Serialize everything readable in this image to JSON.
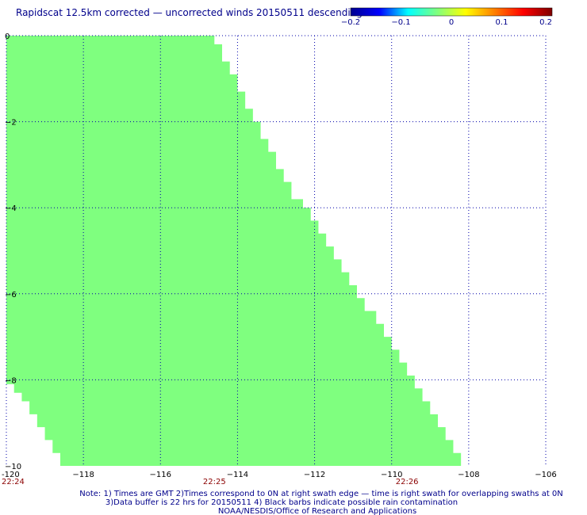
{
  "title": "Rapidscat 12.5km corrected — uncorrected winds 20150511 descending",
  "colorbar": {
    "tick_labels": [
      "−0.2",
      "−0.1",
      "0",
      "0.1",
      "0.2"
    ],
    "range": [
      -0.2,
      0.2
    ],
    "colors": [
      "#00008f",
      "#0000ff",
      "#00ffff",
      "#7fff7f",
      "#ffff00",
      "#ff7f00",
      "#ff0000",
      "#7f0000"
    ]
  },
  "notes": {
    "line1": "Note: 1) Times are GMT 2)Times correspond to 0N at right swath edge — time is right swath for overlapping swaths at 0N",
    "line2": "3)Data buffer is 22 hrs for 20150511 4) Black barbs indicate possible rain contamination",
    "line3": "NOAA/NESDIS/Office of Research and Applications"
  },
  "colors": {
    "swath_fill": "#7fff7f",
    "grid": "#0000aa",
    "time_label": "#8b0000"
  },
  "chart_data": {
    "type": "heatmap",
    "title": "Rapidscat 12.5km corrected — uncorrected winds 20150511 descending",
    "xlabel": "",
    "ylabel": "",
    "xlim": [
      -120,
      -106
    ],
    "ylim": [
      -10,
      0
    ],
    "x_ticks": [
      -120,
      -118,
      -116,
      -114,
      -112,
      -110,
      -108,
      -106
    ],
    "x_tick_labels": [
      "-120",
      "−118",
      "−116",
      "−114",
      "−112",
      "−110",
      "−108",
      "−106"
    ],
    "y_ticks": [
      0,
      -2,
      -4,
      -6,
      -8,
      -10
    ],
    "y_tick_labels": [
      "0",
      "−2",
      "−4",
      "−6",
      "−8",
      "−10"
    ],
    "grid": true,
    "time_labels": [
      {
        "lon": -120,
        "text": "22:24"
      },
      {
        "lon": -114.6,
        "text": "22:25"
      },
      {
        "lon": -109.6,
        "text": "22:26"
      }
    ],
    "swath_value": 0.0,
    "swath_right_edge": [
      {
        "lat": 0.0,
        "lon": -114.6
      },
      {
        "lat": -0.2,
        "lon": -114.6
      },
      {
        "lat": -0.2,
        "lon": -114.4
      },
      {
        "lat": -0.6,
        "lon": -114.4
      },
      {
        "lat": -0.6,
        "lon": -114.2
      },
      {
        "lat": -0.9,
        "lon": -114.2
      },
      {
        "lat": -0.9,
        "lon": -114.0
      },
      {
        "lat": -1.3,
        "lon": -114.0
      },
      {
        "lat": -1.3,
        "lon": -113.8
      },
      {
        "lat": -1.7,
        "lon": -113.8
      },
      {
        "lat": -1.7,
        "lon": -113.6
      },
      {
        "lat": -2.0,
        "lon": -113.6
      },
      {
        "lat": -2.0,
        "lon": -113.4
      },
      {
        "lat": -2.4,
        "lon": -113.4
      },
      {
        "lat": -2.4,
        "lon": -113.2
      },
      {
        "lat": -2.7,
        "lon": -113.2
      },
      {
        "lat": -2.7,
        "lon": -113.0
      },
      {
        "lat": -3.1,
        "lon": -113.0
      },
      {
        "lat": -3.1,
        "lon": -112.8
      },
      {
        "lat": -3.4,
        "lon": -112.8
      },
      {
        "lat": -3.4,
        "lon": -112.6
      },
      {
        "lat": -3.8,
        "lon": -112.6
      },
      {
        "lat": -3.8,
        "lon": -112.3
      },
      {
        "lat": -4.0,
        "lon": -112.3
      },
      {
        "lat": -4.0,
        "lon": -112.1
      },
      {
        "lat": -4.3,
        "lon": -112.1
      },
      {
        "lat": -4.3,
        "lon": -111.9
      },
      {
        "lat": -4.6,
        "lon": -111.9
      },
      {
        "lat": -4.6,
        "lon": -111.7
      },
      {
        "lat": -4.9,
        "lon": -111.7
      },
      {
        "lat": -4.9,
        "lon": -111.5
      },
      {
        "lat": -5.2,
        "lon": -111.5
      },
      {
        "lat": -5.2,
        "lon": -111.3
      },
      {
        "lat": -5.5,
        "lon": -111.3
      },
      {
        "lat": -5.5,
        "lon": -111.1
      },
      {
        "lat": -5.8,
        "lon": -111.1
      },
      {
        "lat": -5.8,
        "lon": -110.9
      },
      {
        "lat": -6.1,
        "lon": -110.9
      },
      {
        "lat": -6.1,
        "lon": -110.7
      },
      {
        "lat": -6.4,
        "lon": -110.7
      },
      {
        "lat": -6.4,
        "lon": -110.4
      },
      {
        "lat": -6.7,
        "lon": -110.4
      },
      {
        "lat": -6.7,
        "lon": -110.2
      },
      {
        "lat": -7.0,
        "lon": -110.2
      },
      {
        "lat": -7.0,
        "lon": -110.0
      },
      {
        "lat": -7.3,
        "lon": -110.0
      },
      {
        "lat": -7.3,
        "lon": -109.8
      },
      {
        "lat": -7.6,
        "lon": -109.8
      },
      {
        "lat": -7.6,
        "lon": -109.6
      },
      {
        "lat": -7.9,
        "lon": -109.6
      },
      {
        "lat": -7.9,
        "lon": -109.4
      },
      {
        "lat": -8.2,
        "lon": -109.4
      },
      {
        "lat": -8.2,
        "lon": -109.2
      },
      {
        "lat": -8.5,
        "lon": -109.2
      },
      {
        "lat": -8.5,
        "lon": -109.0
      },
      {
        "lat": -8.8,
        "lon": -109.0
      },
      {
        "lat": -8.8,
        "lon": -108.8
      },
      {
        "lat": -9.1,
        "lon": -108.8
      },
      {
        "lat": -9.1,
        "lon": -108.6
      },
      {
        "lat": -9.4,
        "lon": -108.6
      },
      {
        "lat": -9.4,
        "lon": -108.4
      },
      {
        "lat": -9.7,
        "lon": -108.4
      },
      {
        "lat": -9.7,
        "lon": -108.2
      },
      {
        "lat": -10.0,
        "lon": -108.2
      }
    ],
    "swath_left_edge": [
      {
        "lat": -10.0,
        "lon": -118.6
      },
      {
        "lat": -9.7,
        "lon": -118.6
      },
      {
        "lat": -9.7,
        "lon": -118.8
      },
      {
        "lat": -9.4,
        "lon": -118.8
      },
      {
        "lat": -9.4,
        "lon": -119.0
      },
      {
        "lat": -9.1,
        "lon": -119.0
      },
      {
        "lat": -9.1,
        "lon": -119.2
      },
      {
        "lat": -8.8,
        "lon": -119.2
      },
      {
        "lat": -8.8,
        "lon": -119.4
      },
      {
        "lat": -8.5,
        "lon": -119.4
      },
      {
        "lat": -8.5,
        "lon": -119.6
      },
      {
        "lat": -8.3,
        "lon": -119.6
      },
      {
        "lat": -8.3,
        "lon": -119.8
      },
      {
        "lat": -8.1,
        "lon": -119.8
      },
      {
        "lat": -8.1,
        "lon": -120.0
      }
    ]
  }
}
